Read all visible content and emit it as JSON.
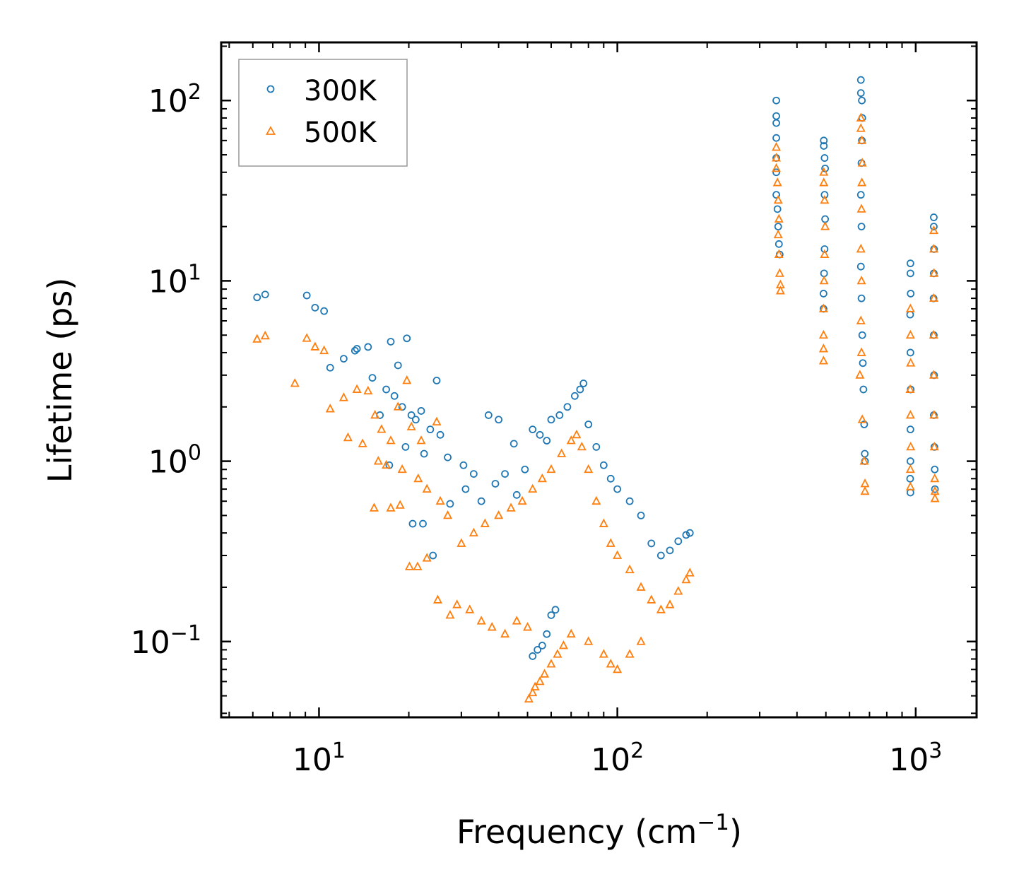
{
  "chart_data": {
    "type": "scatter",
    "title": "",
    "xlabel": "Frequency (cm",
    "xlabel_superscript": "−1",
    "xlabel_suffix": ")",
    "ylabel": "Lifetime (ps)",
    "xscale": "log",
    "yscale": "log",
    "xlim": [
      4.7,
      1600
    ],
    "ylim": [
      0.038,
      210
    ],
    "x_ticks": [
      {
        "value": 10,
        "base": "10",
        "exp": "1"
      },
      {
        "value": 100,
        "base": "10",
        "exp": "2"
      },
      {
        "value": 1000,
        "base": "10",
        "exp": "3"
      }
    ],
    "y_ticks": [
      {
        "value": 0.1,
        "base": "10",
        "exp": "−1"
      },
      {
        "value": 1,
        "base": "10",
        "exp": "0"
      },
      {
        "value": 10,
        "base": "10",
        "exp": "1"
      },
      {
        "value": 100,
        "base": "10",
        "exp": "2"
      }
    ],
    "legend": {
      "position": "top-left",
      "entries": [
        "300K",
        "500K"
      ]
    },
    "series": [
      {
        "name": "300K",
        "marker": "circle",
        "color": "#1f77b4",
        "points": [
          [
            6.2,
            8.1
          ],
          [
            6.6,
            8.4
          ],
          [
            9.1,
            8.3
          ],
          [
            9.7,
            7.1
          ],
          [
            10.4,
            6.8
          ],
          [
            10.9,
            3.3
          ],
          [
            12.1,
            3.7
          ],
          [
            13.2,
            4.1
          ],
          [
            13.4,
            4.2
          ],
          [
            14.6,
            4.3
          ],
          [
            17.4,
            4.6
          ],
          [
            19.7,
            4.8
          ],
          [
            15.1,
            2.9
          ],
          [
            16.8,
            2.5
          ],
          [
            17.9,
            2.3
          ],
          [
            19.0,
            2.0
          ],
          [
            20.4,
            1.8
          ],
          [
            22.0,
            1.9
          ],
          [
            24.8,
            2.8
          ],
          [
            21.1,
            1.7
          ],
          [
            23.6,
            1.5
          ],
          [
            25.5,
            1.4
          ],
          [
            18.4,
            3.4
          ],
          [
            16.0,
            1.8
          ],
          [
            19.5,
            1.2
          ],
          [
            22.5,
            1.1
          ],
          [
            27.0,
            1.05
          ],
          [
            30.5,
            0.95
          ],
          [
            33.0,
            0.85
          ],
          [
            37.0,
            1.8
          ],
          [
            40.0,
            1.7
          ],
          [
            45.0,
            1.25
          ],
          [
            17.2,
            0.95
          ],
          [
            20.6,
            0.45
          ],
          [
            22.3,
            0.45
          ],
          [
            24.1,
            0.3
          ],
          [
            27.5,
            0.58
          ],
          [
            31.0,
            0.7
          ],
          [
            35.0,
            0.6
          ],
          [
            39.0,
            0.75
          ],
          [
            42.0,
            0.85
          ],
          [
            46.0,
            0.65
          ],
          [
            49.0,
            0.9
          ],
          [
            52.0,
            1.5
          ],
          [
            55.0,
            1.4
          ],
          [
            58.0,
            1.3
          ],
          [
            60.0,
            1.7
          ],
          [
            64.0,
            1.8
          ],
          [
            68.0,
            2.0
          ],
          [
            72.0,
            2.3
          ],
          [
            75.0,
            2.5
          ],
          [
            77.0,
            2.7
          ],
          [
            80.0,
            1.6
          ],
          [
            85.0,
            1.2
          ],
          [
            90.0,
            0.95
          ],
          [
            95.0,
            0.8
          ],
          [
            100.0,
            0.7
          ],
          [
            110.0,
            0.6
          ],
          [
            120.0,
            0.5
          ],
          [
            130.0,
            0.35
          ],
          [
            140.0,
            0.3
          ],
          [
            150.0,
            0.32
          ],
          [
            160.0,
            0.36
          ],
          [
            170.0,
            0.39
          ],
          [
            175.0,
            0.4
          ],
          [
            52.0,
            0.083
          ],
          [
            54.0,
            0.09
          ],
          [
            56.0,
            0.095
          ],
          [
            58.0,
            0.11
          ],
          [
            60.0,
            0.14
          ],
          [
            62.0,
            0.15
          ],
          [
            341,
            100
          ],
          [
            341,
            82
          ],
          [
            341,
            75
          ],
          [
            341,
            62
          ],
          [
            341,
            48
          ],
          [
            341,
            40
          ],
          [
            341,
            30
          ],
          [
            344,
            25
          ],
          [
            346,
            20
          ],
          [
            348,
            16
          ],
          [
            350,
            14
          ],
          [
            492,
            60
          ],
          [
            492,
            56
          ],
          [
            495,
            48
          ],
          [
            497,
            42
          ],
          [
            495,
            30
          ],
          [
            497,
            22
          ],
          [
            495,
            15
          ],
          [
            493,
            11
          ],
          [
            491,
            8.5
          ],
          [
            491,
            7.0
          ],
          [
            655,
            130
          ],
          [
            655,
            110
          ],
          [
            660,
            100
          ],
          [
            662,
            80
          ],
          [
            660,
            60
          ],
          [
            658,
            45
          ],
          [
            655,
            30
          ],
          [
            658,
            20
          ],
          [
            655,
            12
          ],
          [
            658,
            8
          ],
          [
            662,
            5
          ],
          [
            665,
            3.5
          ],
          [
            668,
            2.5
          ],
          [
            672,
            1.6
          ],
          [
            675,
            1.1
          ],
          [
            676,
            1.0
          ],
          [
            960,
            12.5
          ],
          [
            960,
            11
          ],
          [
            962,
            8.5
          ],
          [
            958,
            6.5
          ],
          [
            960,
            4
          ],
          [
            962,
            2.5
          ],
          [
            960,
            1.5
          ],
          [
            960,
            1.0
          ],
          [
            958,
            0.8
          ],
          [
            960,
            0.67
          ],
          [
            1150,
            22.5
          ],
          [
            1150,
            20
          ],
          [
            1152,
            15
          ],
          [
            1150,
            11
          ],
          [
            1148,
            8
          ],
          [
            1150,
            5
          ],
          [
            1152,
            3
          ],
          [
            1150,
            1.8
          ],
          [
            1155,
            1.2
          ],
          [
            1158,
            0.9
          ],
          [
            1160,
            0.7
          ]
        ]
      },
      {
        "name": "500K",
        "marker": "triangle",
        "color": "#ff7f0e",
        "points": [
          [
            6.2,
            4.75
          ],
          [
            6.6,
            4.95
          ],
          [
            8.3,
            2.7
          ],
          [
            9.1,
            4.8
          ],
          [
            9.7,
            4.3
          ],
          [
            10.4,
            4.1
          ],
          [
            10.9,
            1.95
          ],
          [
            12.1,
            2.25
          ],
          [
            12.5,
            1.35
          ],
          [
            13.4,
            2.5
          ],
          [
            14.0,
            1.25
          ],
          [
            15.4,
            1.8
          ],
          [
            16.2,
            1.5
          ],
          [
            17.4,
            1.3
          ],
          [
            19.7,
            2.8
          ],
          [
            18.4,
            2.0
          ],
          [
            20.4,
            1.55
          ],
          [
            22.0,
            1.3
          ],
          [
            24.8,
            1.65
          ],
          [
            15.8,
            1.0
          ],
          [
            16.8,
            0.95
          ],
          [
            14.6,
            2.45
          ],
          [
            19.0,
            0.9
          ],
          [
            21.5,
            0.8
          ],
          [
            23.0,
            0.7
          ],
          [
            25.5,
            0.6
          ],
          [
            27.0,
            0.5
          ],
          [
            15.3,
            0.55
          ],
          [
            17.4,
            0.55
          ],
          [
            18.7,
            0.57
          ],
          [
            20.1,
            0.26
          ],
          [
            21.4,
            0.26
          ],
          [
            23.0,
            0.29
          ],
          [
            25.0,
            0.17
          ],
          [
            27.5,
            0.14
          ],
          [
            29.0,
            0.16
          ],
          [
            32.0,
            0.15
          ],
          [
            35.0,
            0.13
          ],
          [
            38.0,
            0.12
          ],
          [
            42.0,
            0.11
          ],
          [
            46.0,
            0.13
          ],
          [
            50.0,
            0.12
          ],
          [
            30.0,
            0.35
          ],
          [
            33.0,
            0.4
          ],
          [
            36.0,
            0.45
          ],
          [
            40.0,
            0.5
          ],
          [
            44.0,
            0.55
          ],
          [
            48.0,
            0.6
          ],
          [
            52.0,
            0.7
          ],
          [
            56.0,
            0.8
          ],
          [
            60.0,
            0.9
          ],
          [
            65.0,
            1.1
          ],
          [
            70.0,
            1.3
          ],
          [
            73.0,
            1.4
          ],
          [
            76.0,
            1.2
          ],
          [
            80.0,
            0.9
          ],
          [
            85.0,
            0.6
          ],
          [
            90.0,
            0.45
          ],
          [
            95.0,
            0.35
          ],
          [
            100.0,
            0.3
          ],
          [
            110.0,
            0.25
          ],
          [
            120.0,
            0.2
          ],
          [
            130.0,
            0.17
          ],
          [
            140.0,
            0.15
          ],
          [
            150.0,
            0.16
          ],
          [
            160.0,
            0.19
          ],
          [
            170.0,
            0.22
          ],
          [
            175.0,
            0.24
          ],
          [
            50.5,
            0.048
          ],
          [
            52.0,
            0.052
          ],
          [
            53.0,
            0.056
          ],
          [
            55.0,
            0.06
          ],
          [
            57.0,
            0.066
          ],
          [
            60.0,
            0.075
          ],
          [
            63.0,
            0.085
          ],
          [
            66.0,
            0.095
          ],
          [
            70.0,
            0.11
          ],
          [
            80.0,
            0.1
          ],
          [
            90.0,
            0.085
          ],
          [
            95.0,
            0.075
          ],
          [
            100.0,
            0.07
          ],
          [
            110.0,
            0.085
          ],
          [
            120.0,
            0.1
          ],
          [
            341,
            55
          ],
          [
            341,
            48
          ],
          [
            341,
            42
          ],
          [
            344,
            35
          ],
          [
            346,
            28
          ],
          [
            348,
            22
          ],
          [
            346,
            18
          ],
          [
            348,
            14
          ],
          [
            350,
            11
          ],
          [
            352,
            9.5
          ],
          [
            352,
            8.8
          ],
          [
            492,
            40
          ],
          [
            492,
            35
          ],
          [
            495,
            28
          ],
          [
            497,
            20
          ],
          [
            495,
            14
          ],
          [
            493,
            10
          ],
          [
            491,
            7
          ],
          [
            491,
            5
          ],
          [
            491,
            4.2
          ],
          [
            491,
            3.6
          ],
          [
            655,
            80
          ],
          [
            655,
            70
          ],
          [
            660,
            60
          ],
          [
            662,
            45
          ],
          [
            660,
            35
          ],
          [
            658,
            25
          ],
          [
            655,
            15
          ],
          [
            658,
            10
          ],
          [
            655,
            6
          ],
          [
            658,
            4
          ],
          [
            650,
            3.0
          ],
          [
            662,
            1.7
          ],
          [
            672,
            1.0
          ],
          [
            676,
            0.75
          ],
          [
            676,
            0.68
          ],
          [
            960,
            7.0
          ],
          [
            960,
            5
          ],
          [
            962,
            3.5
          ],
          [
            958,
            2.5
          ],
          [
            960,
            1.8
          ],
          [
            962,
            1.2
          ],
          [
            960,
            0.9
          ],
          [
            960,
            0.72
          ],
          [
            1150,
            19
          ],
          [
            1150,
            15
          ],
          [
            1152,
            11
          ],
          [
            1150,
            8
          ],
          [
            1148,
            5
          ],
          [
            1150,
            3
          ],
          [
            1152,
            1.8
          ],
          [
            1155,
            1.2
          ],
          [
            1158,
            0.8
          ],
          [
            1160,
            0.68
          ],
          [
            1160,
            0.62
          ]
        ]
      }
    ]
  }
}
